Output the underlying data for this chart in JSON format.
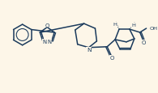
{
  "bg_color": "#fdf6e8",
  "line_color": "#1a3a5c",
  "line_width": 1.1,
  "text_color": "#1a3a5c",
  "font_size": 5.2
}
